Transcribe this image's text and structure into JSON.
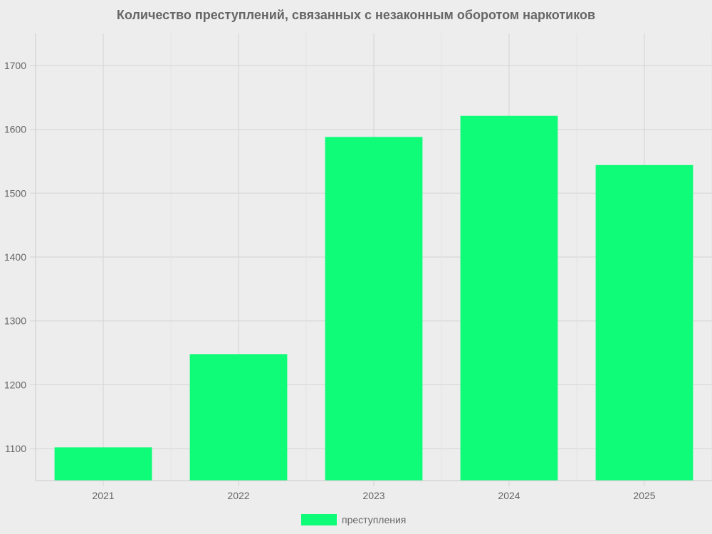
{
  "chart_data": {
    "type": "bar",
    "title": "Количество преступлений, связанных с незаконным оборотом наркотиков",
    "categories": [
      "2021",
      "2022",
      "2023",
      "2024",
      "2025"
    ],
    "series": [
      {
        "name": "преступления",
        "values": [
          1102,
          1248,
          1588,
          1621,
          1544
        ],
        "color": "#0efc78"
      }
    ],
    "xlabel": "",
    "ylabel": "",
    "ylim": [
      1050,
      1750
    ],
    "yticks": [
      1100,
      1200,
      1300,
      1400,
      1500,
      1600,
      1700
    ],
    "grid": true,
    "legend": "bottom"
  }
}
